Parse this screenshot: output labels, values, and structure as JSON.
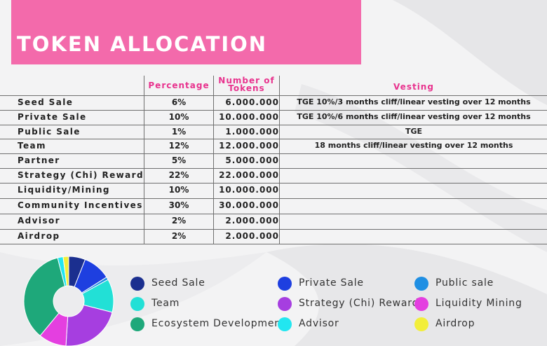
{
  "title": "TOKEN ALLOCATION",
  "headers": {
    "percentage": "Percentage",
    "tokens_line1": "Number of",
    "tokens_line2": "Tokens",
    "vesting": "Vesting"
  },
  "rows": [
    {
      "name": "Seed Sale",
      "pct": "6%",
      "tokens": "6.000.000",
      "vesting": "TGE 10%/3 months cliff/linear vesting over 12 months"
    },
    {
      "name": "Private Sale",
      "pct": "10%",
      "tokens": "10.000.000",
      "vesting": "TGE 10%/6 months cliff/linear vesting over 12 months"
    },
    {
      "name": "Public Sale",
      "pct": "1%",
      "tokens": "1.000.000",
      "vesting": "TGE"
    },
    {
      "name": "Team",
      "pct": "12%",
      "tokens": "12.000.000",
      "vesting": "18 months cliff/linear vesting over 12 months"
    },
    {
      "name": "Partner",
      "pct": "5%",
      "tokens": "5.000.000",
      "vesting": ""
    },
    {
      "name": "Strategy (Chi) Reward",
      "pct": "22%",
      "tokens": "22.000.000",
      "vesting": ""
    },
    {
      "name": "Liquidity/Mining",
      "pct": "10%",
      "tokens": "10.000.000",
      "vesting": ""
    },
    {
      "name": "Community Incentives",
      "pct": "30%",
      "tokens": "30.000.000",
      "vesting": ""
    },
    {
      "name": "Advisor",
      "pct": "2%",
      "tokens": "2.000.000",
      "vesting": ""
    },
    {
      "name": "Airdrop",
      "pct": "2%",
      "tokens": "2.000.000",
      "vesting": ""
    }
  ],
  "legend": [
    {
      "label": "Seed Sale",
      "color": "#1b2f8f"
    },
    {
      "label": "Private Sale",
      "color": "#1e3fe0"
    },
    {
      "label": "Public sale",
      "color": "#1f8fe3"
    },
    {
      "label": "Team",
      "color": "#22e0d6"
    },
    {
      "label": "Strategy (Chi) Reward",
      "color": "#a63ee0"
    },
    {
      "label": "Liquidity Mining",
      "color": "#e43fe0"
    },
    {
      "label": "Ecosystem Development",
      "color": "#1ea87a"
    },
    {
      "label": "Advisor",
      "color": "#22e6f0"
    },
    {
      "label": "Airdrop",
      "color": "#f2ee3a"
    }
  ],
  "chart_data": {
    "type": "pie",
    "donut": true,
    "slices": [
      {
        "name": "Seed Sale",
        "value": 6,
        "color": "#1b2f8f"
      },
      {
        "name": "Private Sale",
        "value": 10,
        "color": "#1e3fe0"
      },
      {
        "name": "Public sale",
        "value": 1,
        "color": "#1f8fe3"
      },
      {
        "name": "Team",
        "value": 12,
        "color": "#22e0d6"
      },
      {
        "name": "Strategy (Chi) Reward",
        "value": 22,
        "color": "#a63ee0"
      },
      {
        "name": "Liquidity Mining",
        "value": 10,
        "color": "#e43fe0"
      },
      {
        "name": "Ecosystem Development",
        "value": 35,
        "color": "#1ea87a"
      },
      {
        "name": "Advisor",
        "value": 2,
        "color": "#22e6f0"
      },
      {
        "name": "Airdrop",
        "value": 2,
        "color": "#f2ee3a"
      }
    ],
    "legend_placement": "right"
  }
}
